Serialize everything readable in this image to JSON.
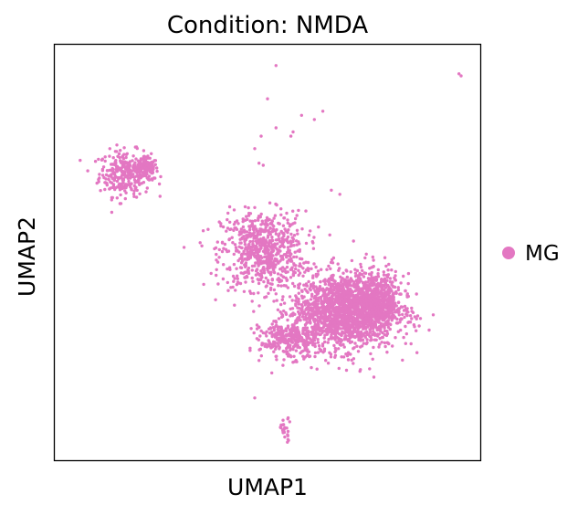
{
  "chart_data": {
    "type": "scatter",
    "title": "Condition: NMDA",
    "xlabel": "UMAP1",
    "ylabel": "UMAP2",
    "xlim": [
      0,
      10
    ],
    "ylim": [
      0,
      10
    ],
    "grid": false,
    "ticks_shown": false,
    "legend": {
      "placement": "right",
      "entries": [
        {
          "label": "MG",
          "color": "#e377c2"
        }
      ]
    },
    "series": [
      {
        "name": "MG",
        "color": "#e377c2",
        "clusters": [
          {
            "center": [
              1.65,
              6.9
            ],
            "spread": [
              0.55,
              0.5
            ],
            "n": 300
          },
          {
            "center": [
              2.15,
              7.0
            ],
            "spread": [
              0.25,
              0.25
            ],
            "n": 120
          },
          {
            "center": [
              4.9,
              5.05
            ],
            "spread": [
              0.9,
              0.85
            ],
            "n": 700
          },
          {
            "center": [
              6.8,
              3.6
            ],
            "spread": [
              1.1,
              0.85
            ],
            "n": 1700
          },
          {
            "center": [
              7.6,
              3.8
            ],
            "spread": [
              0.55,
              0.6
            ],
            "n": 500
          },
          {
            "center": [
              5.5,
              2.9
            ],
            "spread": [
              0.6,
              0.4
            ],
            "n": 300
          },
          {
            "center": [
              5.4,
              0.75
            ],
            "spread": [
              0.15,
              0.25
            ],
            "n": 26
          }
        ],
        "points": [
          [
            5.2,
            9.5
          ],
          [
            9.5,
            9.3
          ],
          [
            9.55,
            9.25
          ],
          [
            5.0,
            8.7
          ],
          [
            5.8,
            8.3
          ],
          [
            6.1,
            8.2
          ],
          [
            6.3,
            8.4
          ],
          [
            5.2,
            8.0
          ],
          [
            5.6,
            7.9
          ],
          [
            5.55,
            7.8
          ],
          [
            4.85,
            7.8
          ],
          [
            4.7,
            7.5
          ],
          [
            4.8,
            7.15
          ],
          [
            4.9,
            7.1
          ],
          [
            6.5,
            6.5
          ],
          [
            6.7,
            6.4
          ],
          [
            4.8,
            2.4
          ],
          [
            5.1,
            2.1
          ],
          [
            4.7,
            1.5
          ],
          [
            7.4,
            2.2
          ],
          [
            7.5,
            2.0
          ]
        ]
      }
    ]
  }
}
